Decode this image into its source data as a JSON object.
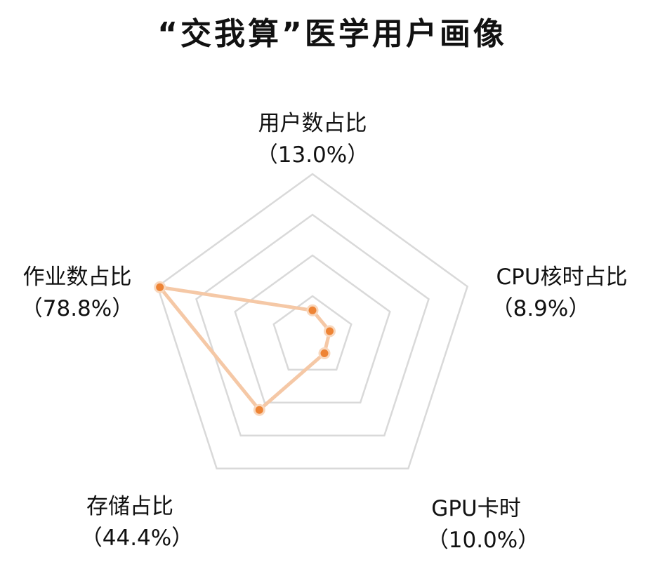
{
  "chart_data": {
    "type": "radar",
    "title": "“交我算”医学用户画像",
    "axes": [
      {
        "name": "用户数占比",
        "value_label": "（13.0%）"
      },
      {
        "name": "CPU核时占比",
        "value_label": "（8.9%）"
      },
      {
        "name": "GPU卡时",
        "value_label": "（10.0%）"
      },
      {
        "name": "存储占比",
        "value_label": "（44.4%）"
      },
      {
        "name": "作业数占比",
        "value_label": "（78.8%）"
      }
    ],
    "series": [
      {
        "values": [
          13.0,
          8.9,
          10.0,
          44.4,
          78.8
        ]
      }
    ],
    "range": [
      0,
      80
    ],
    "rings": 4,
    "grid": true,
    "legend": "none",
    "colors": {
      "line": "#f5c8a6",
      "point": "#ee8435",
      "point_stroke": "#f8d7bd",
      "grid": "#d9d9d9"
    }
  }
}
